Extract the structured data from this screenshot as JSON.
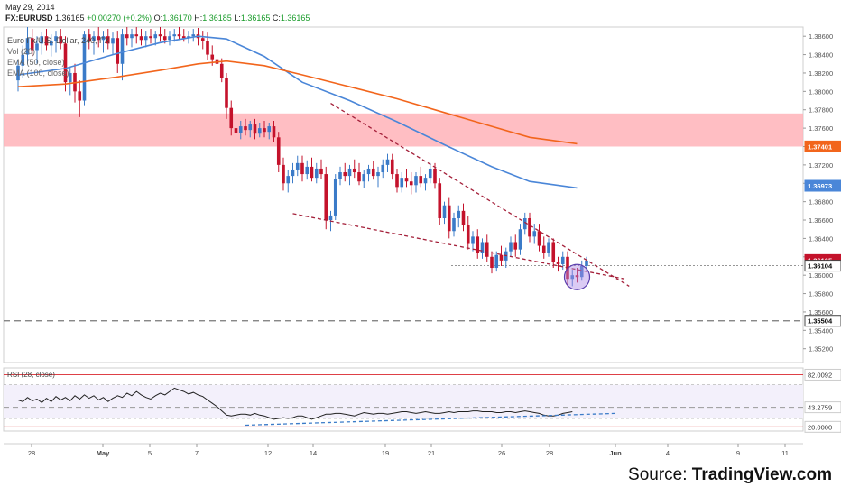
{
  "header": {
    "date": "May 29, 2014",
    "symbol": "FX:EURUSD",
    "last": "1.36165",
    "change": "+0.00270 (+0.2%)",
    "ohlc": [
      {
        "label": "O:",
        "value": "1.36170"
      },
      {
        "label": "H:",
        "value": "1.36185"
      },
      {
        "label": "L:",
        "value": "1.36165"
      },
      {
        "label": "C:",
        "value": "1.36165"
      }
    ],
    "up_color": "#1a9c2b"
  },
  "legend": {
    "title": "Euro Fx/U.S. Dollar, 240, FX",
    "vol": "Vol (20)",
    "ema1": "EMA (50, close)",
    "ema2": "EMA (100, close)"
  },
  "source": {
    "prefix": "Source: ",
    "brand": "TradingView.com"
  },
  "chart_data": [
    {
      "type": "candlestick",
      "ylim": [
        1.3505,
        1.387
      ],
      "y_ticks": [
        "1.38600",
        "1.38400",
        "1.38200",
        "1.38000",
        "1.37800",
        "1.37600",
        "1.37400",
        "1.37200",
        "1.37000",
        "1.36800",
        "1.36600",
        "1.36400",
        "1.36200",
        "1.36000",
        "1.35800",
        "1.35600",
        "1.35400",
        "1.35200"
      ],
      "y_tick_values": [
        1.386,
        1.384,
        1.382,
        1.38,
        1.378,
        1.376,
        1.374,
        1.372,
        1.37,
        1.368,
        1.366,
        1.364,
        1.362,
        1.36,
        1.358,
        1.356,
        1.354,
        1.352
      ],
      "x_ticks": [
        "28",
        "May",
        "5",
        "7",
        "12",
        "14",
        "19",
        "21",
        "26",
        "28",
        "Jun",
        "4",
        "9",
        "11"
      ],
      "colors": {
        "up": "#3b7bc8",
        "down": "#c4122b"
      },
      "candles": [
        [
          1.3812,
          1.3835,
          1.38,
          1.3828
        ],
        [
          1.3828,
          1.385,
          1.3815,
          1.384
        ],
        [
          1.384,
          1.387,
          1.383,
          1.3858
        ],
        [
          1.3858,
          1.3868,
          1.3838,
          1.3845
        ],
        [
          1.3845,
          1.386,
          1.383,
          1.3852
        ],
        [
          1.3852,
          1.3865,
          1.384,
          1.386
        ],
        [
          1.386,
          1.3868,
          1.3845,
          1.385
        ],
        [
          1.385,
          1.3862,
          1.3838,
          1.3855
        ],
        [
          1.3855,
          1.3866,
          1.3842,
          1.386
        ],
        [
          1.386,
          1.3868,
          1.3846,
          1.3852
        ],
        [
          1.3852,
          1.386,
          1.38,
          1.381
        ],
        [
          1.381,
          1.3826,
          1.3796,
          1.382
        ],
        [
          1.382,
          1.383,
          1.3788,
          1.38
        ],
        [
          1.38,
          1.3812,
          1.3772,
          1.379
        ],
        [
          1.379,
          1.3866,
          1.3785,
          1.3862
        ],
        [
          1.3862,
          1.3868,
          1.3846,
          1.3855
        ],
        [
          1.3855,
          1.3866,
          1.384,
          1.386
        ],
        [
          1.386,
          1.387,
          1.3848,
          1.3856
        ],
        [
          1.3856,
          1.3866,
          1.3842,
          1.386
        ],
        [
          1.386,
          1.3868,
          1.3846,
          1.3852
        ],
        [
          1.3852,
          1.3864,
          1.384,
          1.3858
        ],
        [
          1.3858,
          1.3866,
          1.382,
          1.383
        ],
        [
          1.383,
          1.3868,
          1.3812,
          1.3862
        ],
        [
          1.3862,
          1.387,
          1.385,
          1.3858
        ],
        [
          1.3858,
          1.3868,
          1.3848,
          1.3862
        ],
        [
          1.3862,
          1.387,
          1.3852,
          1.386
        ],
        [
          1.386,
          1.3868,
          1.385,
          1.3856
        ],
        [
          1.3856,
          1.3866,
          1.3848,
          1.386
        ],
        [
          1.386,
          1.3868,
          1.3852,
          1.3858
        ],
        [
          1.3858,
          1.3866,
          1.385,
          1.3862
        ],
        [
          1.3862,
          1.387,
          1.3854,
          1.386
        ],
        [
          1.386,
          1.3868,
          1.3852,
          1.3856
        ],
        [
          1.3856,
          1.3866,
          1.385,
          1.386
        ],
        [
          1.386,
          1.3868,
          1.3854,
          1.3862
        ],
        [
          1.3862,
          1.387,
          1.3856,
          1.386
        ],
        [
          1.386,
          1.3868,
          1.3854,
          1.3858
        ],
        [
          1.3858,
          1.3866,
          1.3852,
          1.386
        ],
        [
          1.386,
          1.3868,
          1.3854,
          1.3862
        ],
        [
          1.3862,
          1.3869,
          1.385,
          1.3858
        ],
        [
          1.3858,
          1.3866,
          1.3846,
          1.3855
        ],
        [
          1.3855,
          1.3864,
          1.3834,
          1.384
        ],
        [
          1.384,
          1.385,
          1.3828,
          1.3835
        ],
        [
          1.3835,
          1.3842,
          1.3822,
          1.383
        ],
        [
          1.383,
          1.3836,
          1.381,
          1.3815
        ],
        [
          1.3815,
          1.382,
          1.377,
          1.3782
        ],
        [
          1.3782,
          1.379,
          1.3752,
          1.376
        ],
        [
          1.376,
          1.3772,
          1.3745,
          1.3755
        ],
        [
          1.3755,
          1.3768,
          1.3748,
          1.3762
        ],
        [
          1.3762,
          1.377,
          1.3752,
          1.3758
        ],
        [
          1.3758,
          1.3768,
          1.375,
          1.3764
        ],
        [
          1.3764,
          1.377,
          1.3748,
          1.3754
        ],
        [
          1.3754,
          1.3766,
          1.375,
          1.376
        ],
        [
          1.376,
          1.3768,
          1.375,
          1.3756
        ],
        [
          1.3756,
          1.3766,
          1.3748,
          1.3762
        ],
        [
          1.3762,
          1.3768,
          1.3745,
          1.375
        ],
        [
          1.375,
          1.3756,
          1.3712,
          1.372
        ],
        [
          1.372,
          1.3728,
          1.3692,
          1.37
        ],
        [
          1.37,
          1.3715,
          1.369,
          1.3708
        ],
        [
          1.3708,
          1.3722,
          1.37,
          1.3715
        ],
        [
          1.3715,
          1.373,
          1.3708,
          1.3722
        ],
        [
          1.3722,
          1.373,
          1.3702,
          1.371
        ],
        [
          1.371,
          1.3725,
          1.3704,
          1.3718
        ],
        [
          1.3718,
          1.3728,
          1.3702,
          1.3706
        ],
        [
          1.3706,
          1.3722,
          1.37,
          1.3716
        ],
        [
          1.3716,
          1.3726,
          1.3705,
          1.371
        ],
        [
          1.371,
          1.3718,
          1.365,
          1.366
        ],
        [
          1.366,
          1.367,
          1.3648,
          1.3665
        ],
        [
          1.3665,
          1.371,
          1.366,
          1.3705
        ],
        [
          1.3705,
          1.3718,
          1.3698,
          1.3712
        ],
        [
          1.3712,
          1.3722,
          1.3702,
          1.3708
        ],
        [
          1.3708,
          1.372,
          1.3698,
          1.3716
        ],
        [
          1.3716,
          1.3726,
          1.3706,
          1.3712
        ],
        [
          1.3712,
          1.3722,
          1.3698,
          1.3702
        ],
        [
          1.3702,
          1.3714,
          1.3695,
          1.371
        ],
        [
          1.371,
          1.372,
          1.3702,
          1.3716
        ],
        [
          1.3716,
          1.3724,
          1.3704,
          1.3708
        ],
        [
          1.3708,
          1.3718,
          1.3696,
          1.3712
        ],
        [
          1.3712,
          1.3726,
          1.3706,
          1.372
        ],
        [
          1.372,
          1.3732,
          1.3712,
          1.3726
        ],
        [
          1.3726,
          1.3732,
          1.3704,
          1.371
        ],
        [
          1.371,
          1.3716,
          1.369,
          1.3696
        ],
        [
          1.3696,
          1.3712,
          1.369,
          1.3706
        ],
        [
          1.3706,
          1.3716,
          1.3696,
          1.3702
        ],
        [
          1.3702,
          1.3712,
          1.3688,
          1.3698
        ],
        [
          1.3698,
          1.3712,
          1.369,
          1.3708
        ],
        [
          1.3708,
          1.3718,
          1.3696,
          1.37
        ],
        [
          1.37,
          1.371,
          1.3692,
          1.3706
        ],
        [
          1.3706,
          1.3722,
          1.37,
          1.3716
        ],
        [
          1.3716,
          1.3722,
          1.3694,
          1.37
        ],
        [
          1.37,
          1.3706,
          1.3655,
          1.3662
        ],
        [
          1.3662,
          1.368,
          1.3656,
          1.3676
        ],
        [
          1.3676,
          1.3684,
          1.364,
          1.3648
        ],
        [
          1.3648,
          1.3668,
          1.3642,
          1.3662
        ],
        [
          1.3662,
          1.3676,
          1.3652,
          1.367
        ],
        [
          1.367,
          1.3678,
          1.3648,
          1.3655
        ],
        [
          1.3655,
          1.3664,
          1.3628,
          1.3634
        ],
        [
          1.3634,
          1.3648,
          1.3626,
          1.3642
        ],
        [
          1.3642,
          1.365,
          1.3618,
          1.3624
        ],
        [
          1.3624,
          1.364,
          1.3618,
          1.3636
        ],
        [
          1.3636,
          1.3644,
          1.3614,
          1.362
        ],
        [
          1.362,
          1.3626,
          1.3602,
          1.3608
        ],
        [
          1.3608,
          1.3626,
          1.3604,
          1.3622
        ],
        [
          1.3622,
          1.3632,
          1.361,
          1.3616
        ],
        [
          1.3616,
          1.363,
          1.3608,
          1.3626
        ],
        [
          1.3626,
          1.3642,
          1.362,
          1.3636
        ],
        [
          1.3636,
          1.3644,
          1.362,
          1.3628
        ],
        [
          1.3628,
          1.3656,
          1.3622,
          1.365
        ],
        [
          1.365,
          1.3668,
          1.3644,
          1.3662
        ],
        [
          1.3662,
          1.3668,
          1.3636,
          1.3642
        ],
        [
          1.3642,
          1.3656,
          1.3634,
          1.3648
        ],
        [
          1.3648,
          1.3656,
          1.3626,
          1.3632
        ],
        [
          1.3632,
          1.3642,
          1.3618,
          1.3624
        ],
        [
          1.3624,
          1.364,
          1.362,
          1.3636
        ],
        [
          1.3636,
          1.364,
          1.3608,
          1.3614
        ],
        [
          1.3614,
          1.362,
          1.3604,
          1.3612
        ],
        [
          1.3612,
          1.3626,
          1.3606,
          1.362
        ],
        [
          1.362,
          1.3626,
          1.3588,
          1.3596
        ],
        [
          1.3596,
          1.3606,
          1.3588,
          1.36
        ],
        [
          1.36,
          1.3608,
          1.3592,
          1.3598
        ],
        [
          1.3598,
          1.3616,
          1.3594,
          1.361
        ],
        [
          1.361,
          1.362,
          1.3604,
          1.3616
        ]
      ],
      "overlays": [
        {
          "name": "EMA (50, close)",
          "color": "#4a86d8",
          "points": [
            [
              0,
              1.3818
            ],
            [
              10,
              1.3825
            ],
            [
              20,
              1.384
            ],
            [
              30,
              1.3853
            ],
            [
              38,
              1.386
            ],
            [
              44,
              1.3857
            ],
            [
              52,
              1.3838
            ],
            [
              60,
              1.381
            ],
            [
              70,
              1.379
            ],
            [
              80,
              1.3767
            ],
            [
              90,
              1.3742
            ],
            [
              100,
              1.3718
            ],
            [
              108,
              1.3702
            ],
            [
              118,
              1.3695
            ]
          ]
        },
        {
          "name": "EMA (100, close)",
          "color": "#f2651c",
          "points": [
            [
              0,
              1.3805
            ],
            [
              10,
              1.3808
            ],
            [
              20,
              1.3815
            ],
            [
              30,
              1.3823
            ],
            [
              38,
              1.383
            ],
            [
              44,
              1.3833
            ],
            [
              52,
              1.3828
            ],
            [
              60,
              1.3818
            ],
            [
              70,
              1.3805
            ],
            [
              80,
              1.3792
            ],
            [
              90,
              1.3777
            ],
            [
              100,
              1.3762
            ],
            [
              108,
              1.375
            ],
            [
              118,
              1.3743
            ]
          ]
        }
      ],
      "resistance_zone": [
        1.374,
        1.3776
      ],
      "trendlines": [
        {
          "color": "#a4203a",
          "points": [
            [
              66,
              1.3787
            ],
            [
              129,
              1.3588
            ]
          ]
        },
        {
          "color": "#a4203a",
          "points": [
            [
              58,
              1.3667
            ],
            [
              128,
              1.3596
            ]
          ]
        }
      ],
      "support_level": 1.35504,
      "price_line": 1.36104,
      "price_labels": [
        {
          "text": "1.37401",
          "value": 1.37401,
          "color": "#f2651c"
        },
        {
          "text": "1.36973",
          "value": 1.36973,
          "color": "#4a86d8"
        },
        {
          "text": "1.36165",
          "value": 1.36165,
          "color": "#c4122b"
        },
        {
          "text": "1.36104",
          "value": 1.36104,
          "color": "#ffffff",
          "text_color": "#000000"
        },
        {
          "text": "1.35504",
          "value": 1.35504,
          "color": "#ffffff",
          "text_color": "#000000"
        }
      ],
      "highlight_circle": {
        "index": 118,
        "value": 1.3598
      }
    },
    {
      "type": "line",
      "title": "RSI (28, close)",
      "ylim": [
        15,
        90
      ],
      "levels": [
        82.0092,
        20.0
      ],
      "midlines": [
        70,
        30
      ],
      "y_tick_labels": [
        {
          "text": "82.0092",
          "value": 82.0092
        },
        {
          "text": "43.2759",
          "value": 43.2759
        },
        {
          "text": "20.0000",
          "value": 20.0
        }
      ],
      "color": "#222222",
      "values": [
        52,
        50,
        55,
        51,
        53,
        49,
        54,
        50,
        56,
        52,
        55,
        51,
        57,
        53,
        58,
        54,
        57,
        52,
        55,
        50,
        54,
        57,
        55,
        60,
        57,
        62,
        58,
        55,
        53,
        57,
        60,
        58,
        62,
        66,
        64,
        62,
        59,
        61,
        58,
        56,
        52,
        48,
        44,
        39,
        34,
        33,
        34,
        35,
        35,
        34,
        36,
        34,
        33,
        31,
        29,
        30,
        31,
        30,
        31,
        33,
        33,
        31,
        29,
        31,
        33,
        35,
        35,
        36,
        36,
        35,
        34,
        33,
        35,
        37,
        36,
        35,
        36,
        36,
        35,
        36,
        37,
        38,
        38,
        37,
        36,
        37,
        38,
        37,
        36,
        36,
        37,
        38,
        37,
        38,
        38,
        38,
        39,
        39,
        38,
        38,
        38,
        37,
        37,
        38,
        38,
        37,
        38,
        39,
        38,
        37,
        36,
        34,
        33,
        33,
        34,
        36,
        37,
        38
      ],
      "divergence_line": {
        "color": "#3b7bc8",
        "points": [
          [
            48,
            22
          ],
          [
            126,
            36
          ]
        ]
      }
    }
  ]
}
